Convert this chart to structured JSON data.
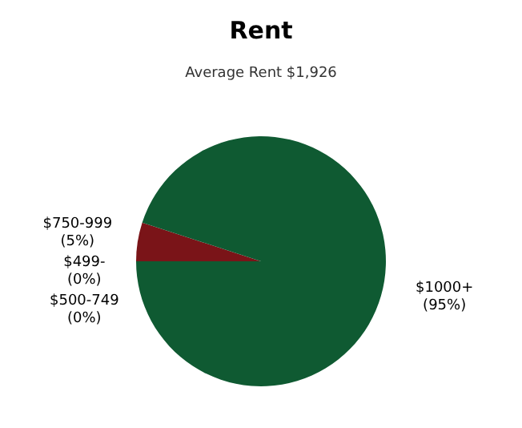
{
  "chart_data": {
    "type": "pie",
    "title": "Rent",
    "subtitle": "Average Rent  $1,926",
    "categories": [
      "$750-999",
      "$499-",
      "$500-749",
      "$1000+"
    ],
    "values": [
      5,
      0,
      0,
      95
    ],
    "value_labels": [
      "(5%)",
      "(0%)",
      "(0%)",
      "(95%)"
    ],
    "colors": [
      "#7a1418",
      "#8a2a20",
      "#1d6b3f",
      "#0f5a32"
    ]
  }
}
